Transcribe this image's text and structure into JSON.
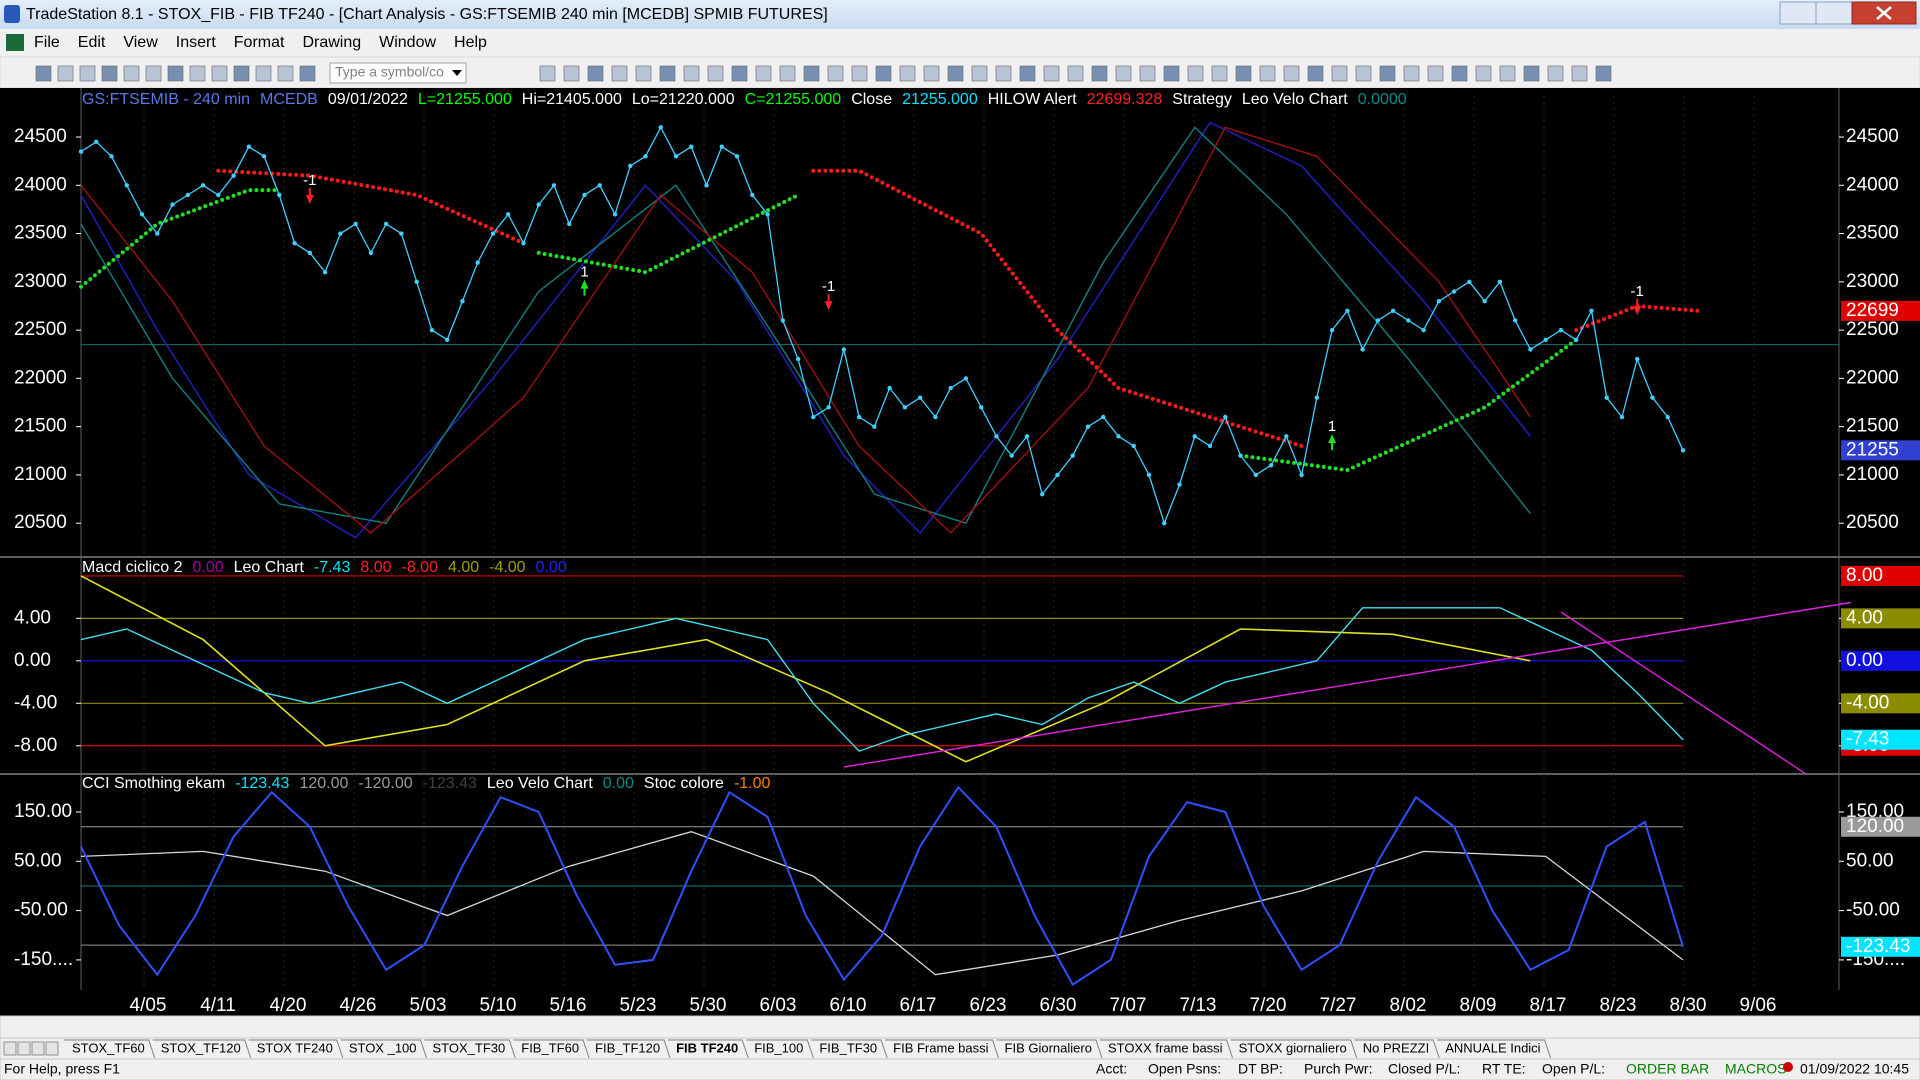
{
  "window": {
    "title": "TradeStation 8.1 - STOX_FIB - FIB TF240 - [Chart Analysis - GS:FTSEMIB  240 min  [MCEDB] SPMIB FUTURES]",
    "menus": [
      "File",
      "Edit",
      "View",
      "Insert",
      "Format",
      "Drawing",
      "Window",
      "Help"
    ],
    "symbol_box": "Type a symbol/co"
  },
  "price_panel": {
    "header": [
      {
        "text": "GS:FTSEMIB - 240 min",
        "color": "#5a78e6"
      },
      {
        "text": "MCEDB",
        "color": "#5a78e6"
      },
      {
        "text": "09/01/2022",
        "color": "#ffffff"
      },
      {
        "text": "L=21255.000",
        "color": "#00ff00"
      },
      {
        "text": "Hi=21405.000",
        "color": "#ffffff"
      },
      {
        "text": "Lo=21220.000",
        "color": "#ffffff"
      },
      {
        "text": "C=21255.000",
        "color": "#00ff00"
      },
      {
        "text": "Close",
        "color": "#ffffff"
      },
      {
        "text": "21255.000",
        "color": "#00e5ff"
      },
      {
        "text": "HILOW Alert",
        "color": "#ffffff"
      },
      {
        "text": "22699.328",
        "color": "#ff2020"
      },
      {
        "text": "Strategy",
        "color": "#ffffff"
      },
      {
        "text": "Leo Velo Chart",
        "color": "#ffffff"
      },
      {
        "text": "0.0000",
        "color": "#008c8c"
      }
    ],
    "ylim": [
      20150,
      24925
    ],
    "yticks": [
      24500,
      24000,
      23500,
      23000,
      22500,
      22000,
      21500,
      21000,
      20500
    ],
    "hline": 22350,
    "price": {
      "color": "#40d0ff",
      "values": [
        24350,
        24450,
        24300,
        24000,
        23700,
        23500,
        23800,
        23900,
        24000,
        23900,
        24100,
        24400,
        24300,
        23900,
        23400,
        23300,
        23100,
        23500,
        23600,
        23300,
        23600,
        23500,
        23000,
        22500,
        22400,
        22800,
        23200,
        23500,
        23700,
        23400,
        23800,
        24000,
        23600,
        23900,
        24000,
        23700,
        24200,
        24300,
        24600,
        24300,
        24400,
        24000,
        24400,
        24300,
        23900,
        23700,
        22600,
        22200,
        21600,
        21700,
        22300,
        21600,
        21500,
        21900,
        21700,
        21800,
        21600,
        21900,
        22000,
        21700,
        21400,
        21200,
        21400,
        20800,
        21000,
        21200,
        21500,
        21600,
        21400,
        21300,
        21000,
        20500,
        20900,
        21400,
        21300,
        21600,
        21200,
        21000,
        21100,
        21400,
        21000,
        21800,
        22500,
        22700,
        22300,
        22600,
        22700,
        22600,
        22500,
        22800,
        22900,
        23000,
        22800,
        23000,
        22600,
        22300,
        22400,
        22500,
        22400,
        22700,
        21800,
        21600,
        22200,
        21800,
        21600,
        21255
      ]
    },
    "cycles": [
      {
        "color": "#2020c8",
        "x": [
          0,
          5,
          11,
          18,
          27,
          37,
          43,
          50,
          55,
          64,
          74,
          80,
          88,
          95
        ],
        "values": [
          23900,
          22500,
          21000,
          20350,
          22000,
          24000,
          23000,
          21200,
          20400,
          22200,
          24650,
          24200,
          22800,
          21400
        ]
      },
      {
        "color": "#138080",
        "x": [
          0,
          6,
          13,
          20,
          30,
          39,
          46,
          52,
          58,
          67,
          73,
          79,
          87,
          95
        ],
        "values": [
          23600,
          22000,
          20700,
          20500,
          22900,
          24000,
          22300,
          20800,
          20500,
          23200,
          24600,
          23700,
          22200,
          20600
        ]
      },
      {
        "color": "#a01010",
        "x": [
          0,
          6,
          12,
          19,
          29,
          38,
          44,
          51,
          57,
          66,
          75,
          81,
          89,
          95
        ],
        "values": [
          24000,
          22800,
          21300,
          20400,
          21800,
          23900,
          23100,
          21300,
          20400,
          21900,
          24600,
          24300,
          23000,
          21600
        ]
      }
    ],
    "hilow": [
      {
        "color": "#ff1a1a",
        "x": [
          9,
          15,
          22,
          29
        ],
        "values": [
          24150,
          24100,
          23900,
          23400
        ]
      },
      {
        "color": "#ff1a1a",
        "x": [
          48,
          51,
          59,
          64,
          68,
          76,
          80
        ],
        "values": [
          24150,
          24150,
          23500,
          22500,
          21900,
          21500,
          21300
        ]
      },
      {
        "color": "#ff1a1a",
        "x": [
          98,
          102,
          106
        ],
        "values": [
          22500,
          22750,
          22700
        ]
      },
      {
        "color": "#20e020",
        "x": [
          0,
          5,
          11,
          13
        ],
        "values": [
          22950,
          23600,
          23950,
          23950
        ]
      },
      {
        "color": "#20e020",
        "x": [
          30,
          37,
          47
        ],
        "values": [
          23300,
          23100,
          23900
        ]
      },
      {
        "color": "#20e020",
        "x": [
          76,
          83,
          92,
          98
        ],
        "values": [
          21200,
          21050,
          21700,
          22400
        ]
      }
    ],
    "signals": [
      {
        "text": "-1",
        "x": 15,
        "y": 23900
      },
      {
        "text": "-1",
        "x": 49,
        "y": 22800
      },
      {
        "text": "-1",
        "x": 102,
        "y": 22750
      },
      {
        "text": "1",
        "x": 33,
        "y": 22950
      },
      {
        "text": "1",
        "x": 82,
        "y": 21350
      }
    ],
    "badges": [
      {
        "value": 22699.328,
        "label": "22699",
        "color": "#e00000"
      },
      {
        "value": 21255,
        "label": "21255",
        "color": "#3040d0"
      }
    ]
  },
  "macd_panel": {
    "header": [
      {
        "text": "Macd ciclico 2",
        "color": "#ffffff"
      },
      {
        "text": "0.00",
        "color": "#a000a0"
      },
      {
        "text": "Leo Chart",
        "color": "#ffffff"
      },
      {
        "text": "-7.43",
        "color": "#00e5ff"
      },
      {
        "text": "8.00",
        "color": "#ff2020"
      },
      {
        "text": "-8.00",
        "color": "#ff2020"
      },
      {
        "text": "4.00",
        "color": "#a0a000"
      },
      {
        "text": "-4.00",
        "color": "#a0a000"
      },
      {
        "text": "0.00",
        "color": "#2020ff"
      }
    ],
    "ylim": [
      -10.66,
      9.5
    ],
    "yticks": [
      {
        "value": 4,
        "label": "4.00"
      },
      {
        "value": 0,
        "label": "0.00"
      },
      {
        "value": -4,
        "label": "-4.00"
      },
      {
        "value": -8,
        "label": "-8.00"
      }
    ],
    "levels": [
      {
        "value": 8,
        "label": "8.00",
        "color": "#e00000"
      },
      {
        "value": 4,
        "label": "4.00",
        "color": "#8c8c00"
      },
      {
        "value": 0,
        "label": "0.00",
        "color": "#1010e0"
      },
      {
        "value": -4,
        "label": "-4.00",
        "color": "#8c8c00"
      },
      {
        "value": -8,
        "label": "-8.00",
        "color": "#e00000"
      }
    ],
    "last": {
      "value": -7.43,
      "label": "-7.43",
      "color": "#00e5ff"
    },
    "macd": {
      "color": "#40e0f0",
      "x": [
        0,
        3,
        6,
        9,
        12,
        15,
        18,
        21,
        24,
        27,
        30,
        33,
        36,
        39,
        42,
        45,
        48,
        51,
        54,
        57,
        60,
        63,
        66,
        69,
        72,
        75,
        78,
        81,
        84,
        87,
        90,
        93,
        96,
        99,
        102,
        105
      ],
      "values": [
        2,
        3,
        1,
        -1,
        -3,
        -4,
        -3,
        -2,
        -4,
        -2,
        0,
        2,
        3,
        4,
        3,
        2,
        -4,
        -8.5,
        -7,
        -6,
        -5,
        -6,
        -3.5,
        -2,
        -4,
        -2,
        -1,
        0,
        5,
        5,
        5,
        5,
        3,
        1,
        -3,
        -7.43
      ]
    },
    "signal": {
      "color": "#e0e020",
      "x": [
        0,
        8,
        16,
        24,
        33,
        41,
        49,
        58,
        67,
        76,
        86,
        95
      ],
      "values": [
        8,
        2,
        -8,
        -6,
        0,
        2,
        -3,
        -9.5,
        -4,
        3,
        2.5,
        0
      ]
    },
    "trendlines": [
      {
        "color": "#e020e0",
        "x": [
          50,
          116
        ],
        "values": [
          -10,
          5.5
        ]
      },
      {
        "color": "#e020e0",
        "x": [
          97,
          113
        ],
        "values": [
          4.6,
          -10.6
        ]
      }
    ]
  },
  "cci_panel": {
    "header": [
      {
        "text": "CCI Smothing ekam",
        "color": "#ffffff"
      },
      {
        "text": "-123.43",
        "color": "#00e5ff"
      },
      {
        "text": "120.00",
        "color": "#9a9a9a"
      },
      {
        "text": "-120.00",
        "color": "#9a9a9a"
      },
      {
        "text": "-123.43",
        "color": "#404040"
      },
      {
        "text": "Leo Velo Chart",
        "color": "#ffffff"
      },
      {
        "text": "0.00",
        "color": "#008c8c"
      },
      {
        "text": "Stoc colore",
        "color": "#ffffff"
      },
      {
        "text": "-1.00",
        "color": "#ff8000"
      }
    ],
    "ylim": [
      -209,
      223
    ],
    "yticks": [
      {
        "value": 150,
        "label": "150.00"
      },
      {
        "value": 50,
        "label": "50.00"
      },
      {
        "value": -50,
        "label": "-50.00"
      },
      {
        "value": -150,
        "label": "-150...."
      }
    ],
    "levels": [
      {
        "value": 120,
        "label": "120.00",
        "color": "#9a9a9a"
      },
      {
        "value": -120,
        "color": "#9a9a9a"
      },
      {
        "value": 0,
        "color": "#138080"
      }
    ],
    "last": {
      "value": -123.43,
      "label": "-123.43",
      "color": "#00e5ff"
    },
    "cci": {
      "color": "#3050ff",
      "x": [
        0,
        2.5,
        5,
        7.5,
        10,
        12.5,
        15,
        17.5,
        20,
        22.5,
        25,
        27.5,
        30,
        32.5,
        35,
        37.5,
        40,
        42.5,
        45,
        47.5,
        50,
        52.5,
        55,
        57.5,
        60,
        62.5,
        65,
        67.5,
        70,
        72.5,
        75,
        77.5,
        80,
        82.5,
        85,
        87.5,
        90,
        92.5,
        95,
        97.5,
        100,
        102.5,
        105
      ],
      "values": [
        80,
        -80,
        -180,
        -60,
        100,
        190,
        120,
        -40,
        -170,
        -120,
        40,
        180,
        150,
        -20,
        -160,
        -150,
        30,
        190,
        140,
        -60,
        -190,
        -100,
        80,
        200,
        120,
        -60,
        -200,
        -150,
        60,
        170,
        150,
        -40,
        -170,
        -120,
        50,
        180,
        120,
        -50,
        -170,
        -130,
        80,
        130,
        -123.43
      ]
    },
    "smooth": {
      "color": "#d8d8d8",
      "x": [
        0,
        8,
        16,
        24,
        32,
        40,
        48,
        56,
        64,
        72,
        80,
        88,
        96,
        105
      ],
      "values": [
        60,
        70,
        30,
        -60,
        40,
        110,
        20,
        -180,
        -140,
        -70,
        -10,
        70,
        60,
        -150
      ]
    }
  },
  "dates": [
    "4/05",
    "4/11",
    "4/20",
    "4/26",
    "5/03",
    "5/10",
    "5/16",
    "5/23",
    "5/30",
    "6/03",
    "6/10",
    "6/17",
    "6/23",
    "6/30",
    "7/07",
    "7/13",
    "7/20",
    "7/27",
    "8/02",
    "8/09",
    "8/17",
    "8/23",
    "8/30",
    "9/06"
  ],
  "tabs": {
    "items": [
      "STOX_TF60",
      "STOX_TF120",
      "STOX TF240",
      "STOX _100",
      "STOX_TF30",
      "FIB_TF60",
      "FIB_TF120",
      "FIB TF240",
      "FIB_100",
      "FIB_TF30",
      "FIB Frame bassi",
      "FIB Giornaliero",
      "STOXX frame bassi",
      "STOXX giornaliero",
      "No PREZZI",
      "ANNUALE Indici"
    ],
    "active": 7
  },
  "status": {
    "help": "For Help, press F1",
    "fields": [
      "Acct:",
      "Open Psns:",
      "DT BP:",
      "Purch Pwr:",
      "Closed P/L:",
      "RT TE:",
      "Open P/L:"
    ],
    "order_bar": "ORDER BAR",
    "macros": "MACROS",
    "clock": "01/09/2022 10:45"
  }
}
